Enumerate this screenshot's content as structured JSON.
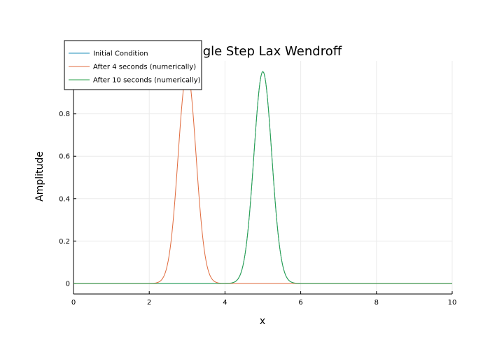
{
  "chart_data": {
    "type": "line",
    "title": "Single Step Lax Wendroff",
    "xlabel": "x",
    "ylabel": "Amplitude",
    "xlim": [
      0,
      10
    ],
    "ylim": [
      -0.05,
      1.05
    ],
    "xticks": [
      0,
      2,
      4,
      6,
      8,
      10
    ],
    "xtick_labels": [
      "0",
      "2",
      "4",
      "6",
      "8",
      "10"
    ],
    "yticks": [
      0,
      0.2,
      0.4,
      0.6,
      0.8
    ],
    "ytick_labels": [
      "0",
      "0.2",
      "0.4",
      "0.6",
      "0.8"
    ],
    "grid": true,
    "legend_position": "top-left",
    "series": [
      {
        "name": "Initial Condition",
        "color": "#1f8fb8",
        "shape": "gaussian",
        "center": 5,
        "amplitude": 1,
        "width": 0.35,
        "x_range": [
          0,
          10
        ]
      },
      {
        "name": "After 4 seconds (numerically)",
        "color": "#e06a3c",
        "shape": "gaussian",
        "center": 3,
        "amplitude": 1,
        "width": 0.35,
        "x_range": [
          0,
          10
        ]
      },
      {
        "name": "After 10 seconds (numerically)",
        "color": "#2aa04a",
        "shape": "gaussian",
        "center": 5,
        "amplitude": 1,
        "width": 0.35,
        "x_range": [
          0,
          10
        ]
      }
    ]
  }
}
